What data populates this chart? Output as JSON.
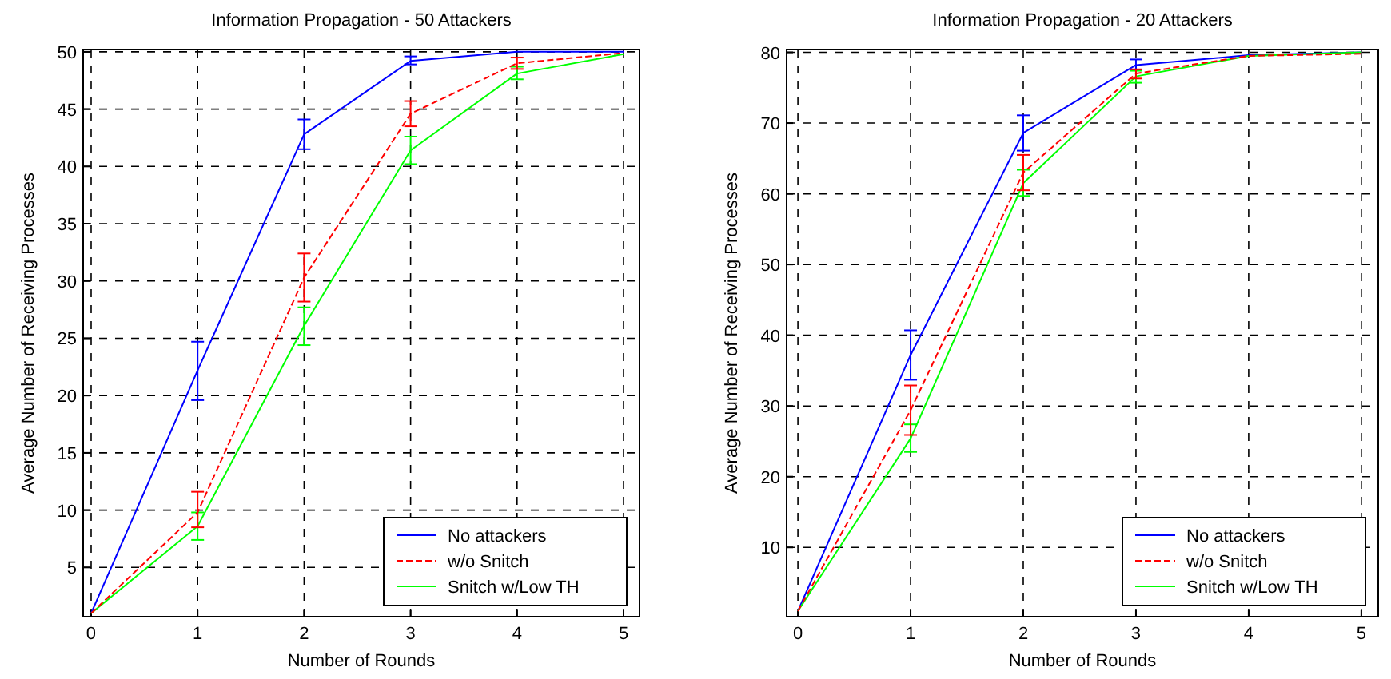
{
  "chart_data": [
    {
      "type": "line",
      "title": "Information Propagation - 50 Attackers",
      "xlabel": "Number of Rounds",
      "ylabel": "Average Number of Receiving Processes",
      "x": [
        0,
        1,
        2,
        3,
        4,
        5
      ],
      "xlim": [
        -0.075,
        5.15
      ],
      "ylim": [
        0.7,
        50.2
      ],
      "xticks": [
        0,
        1,
        2,
        3,
        4,
        5
      ],
      "yticks": [
        5,
        10,
        15,
        20,
        25,
        30,
        35,
        40,
        45,
        50
      ],
      "grid": true,
      "legend": "bottom right",
      "marker": "none",
      "series": [
        {
          "name": "No attackers",
          "color": "#0000ff",
          "line_style": "solid",
          "values": [
            1,
            22.2,
            42.8,
            49.2,
            50,
            50
          ],
          "errors": [
            null,
            [
              19.6,
              24.7
            ],
            [
              41.5,
              44.1
            ],
            [
              48.9,
              49.6
            ],
            null,
            null
          ]
        },
        {
          "name": "w/o Snitch",
          "color": "#ff0000",
          "line_style": "dashed",
          "values": [
            1,
            9.8,
            30.3,
            44.6,
            49,
            49.9
          ],
          "errors": [
            null,
            [
              8.5,
              11.6
            ],
            [
              28.2,
              32.4
            ],
            [
              43.5,
              45.7
            ],
            [
              48.5,
              49.5
            ],
            null
          ]
        },
        {
          "name": "Snitch w/Low TH",
          "color": "#00ff00",
          "line_style": "solid",
          "values": [
            1,
            8.6,
            26.1,
            41.4,
            48.1,
            49.8
          ],
          "errors": [
            null,
            [
              7.4,
              9.8
            ],
            [
              24.4,
              27.7
            ],
            [
              40.2,
              42.6
            ],
            [
              47.6,
              48.7
            ],
            null
          ]
        }
      ]
    },
    {
      "type": "line",
      "title": "Information Propagation - 20 Attackers",
      "xlabel": "Number of Rounds",
      "ylabel": "Average Number of Receiving Processes",
      "x": [
        0,
        1,
        2,
        3,
        4,
        5
      ],
      "xlim": [
        -0.1,
        5.15
      ],
      "ylim": [
        0.2,
        80.4
      ],
      "xticks": [
        0,
        1,
        2,
        3,
        4,
        5
      ],
      "yticks": [
        10,
        20,
        30,
        40,
        50,
        60,
        70,
        80
      ],
      "grid": true,
      "legend": "bottom right",
      "marker": "none",
      "series": [
        {
          "name": "No attackers",
          "color": "#0000ff",
          "line_style": "solid",
          "values": [
            1,
            37.2,
            68.6,
            78.2,
            79.6,
            80
          ],
          "errors": [
            null,
            [
              33.7,
              40.7
            ],
            [
              66.1,
              71.1
            ],
            [
              77.5,
              79
            ],
            null,
            null
          ]
        },
        {
          "name": "w/o Snitch",
          "color": "#ff0000",
          "line_style": "dashed",
          "values": [
            1,
            29.4,
            63,
            77,
            79.5,
            79.8
          ],
          "errors": [
            null,
            [
              25.9,
              32.9
            ],
            [
              60.5,
              65.5
            ],
            [
              76.3,
              77.6
            ],
            null,
            null
          ]
        },
        {
          "name": "Snitch w/Low TH",
          "color": "#00ff00",
          "line_style": "solid",
          "values": [
            1,
            25.4,
            61.5,
            76.6,
            79.5,
            80
          ],
          "errors": [
            null,
            [
              23.5,
              27.4
            ],
            [
              59.7,
              63.4
            ],
            [
              75.7,
              77.4
            ],
            null,
            null
          ]
        }
      ]
    }
  ]
}
